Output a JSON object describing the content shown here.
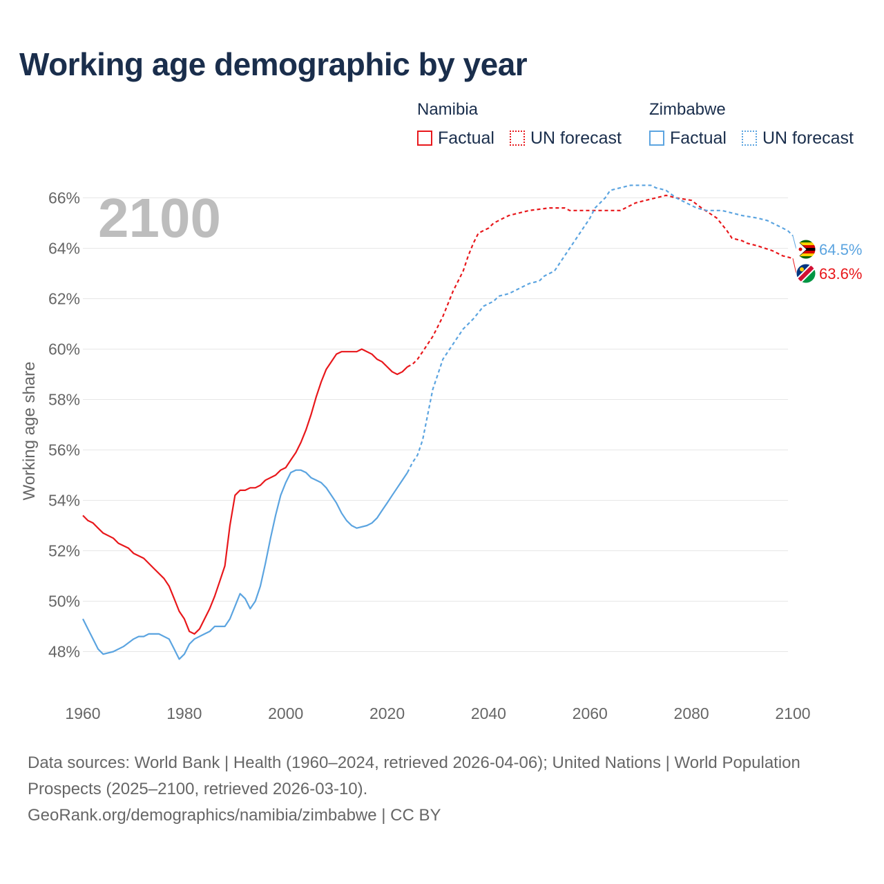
{
  "header": {
    "title": "Working age demographic by year"
  },
  "legend": {
    "groups": [
      {
        "name": "Namibia",
        "factual_label": "Factual",
        "forecast_label": "UN forecast",
        "color": "#e8171b"
      },
      {
        "name": "Zimbabwe",
        "factual_label": "Factual",
        "forecast_label": "UN forecast",
        "color": "#5ba4e0"
      }
    ]
  },
  "footer": {
    "source_line1": "Data sources: World Bank | Health (1960–2024, retrieved 2026-04-06); United Nations | World Population Prospects (2025–2100, retrieved 2026-03-10).",
    "source_line2": "GeoRank.org/demographics/namibia/zimbabwe | CC BY"
  },
  "chart_data": {
    "type": "line",
    "title": "Working age demographic by year",
    "xlabel": "",
    "ylabel": "Working age share",
    "year_label": "2100",
    "xlim": [
      1960,
      2103
    ],
    "ylim": [
      47,
      67
    ],
    "x_ticks": [
      1960,
      1980,
      2000,
      2020,
      2040,
      2060,
      2080,
      2100
    ],
    "y_ticks": [
      48,
      50,
      52,
      54,
      56,
      58,
      60,
      62,
      64,
      66
    ],
    "y_tick_labels": [
      "48%",
      "50%",
      "52%",
      "54%",
      "56%",
      "58%",
      "60%",
      "62%",
      "64%",
      "66%"
    ],
    "grid": true,
    "forecast_start": 2024,
    "series": [
      {
        "name": "Namibia",
        "color": "#e8171b",
        "end_label": "63.6%",
        "flag_icon": "namibia-flag-icon",
        "points": [
          [
            1960,
            53.4
          ],
          [
            1961,
            53.2
          ],
          [
            1962,
            53.1
          ],
          [
            1963,
            52.9
          ],
          [
            1964,
            52.7
          ],
          [
            1966,
            52.5
          ],
          [
            1967,
            52.3
          ],
          [
            1969,
            52.1
          ],
          [
            1970,
            51.9
          ],
          [
            1972,
            51.7
          ],
          [
            1974,
            51.3
          ],
          [
            1976,
            50.9
          ],
          [
            1977,
            50.6
          ],
          [
            1978,
            50.1
          ],
          [
            1979,
            49.6
          ],
          [
            1980,
            49.3
          ],
          [
            1981,
            48.8
          ],
          [
            1982,
            48.7
          ],
          [
            1983,
            48.9
          ],
          [
            1984,
            49.3
          ],
          [
            1985,
            49.7
          ],
          [
            1986,
            50.2
          ],
          [
            1987,
            50.8
          ],
          [
            1988,
            51.4
          ],
          [
            1989,
            53.0
          ],
          [
            1990,
            54.2
          ],
          [
            1991,
            54.4
          ],
          [
            1992,
            54.4
          ],
          [
            1993,
            54.5
          ],
          [
            1994,
            54.5
          ],
          [
            1995,
            54.6
          ],
          [
            1996,
            54.8
          ],
          [
            1998,
            55.0
          ],
          [
            1999,
            55.2
          ],
          [
            2000,
            55.3
          ],
          [
            2001,
            55.6
          ],
          [
            2002,
            55.9
          ],
          [
            2003,
            56.3
          ],
          [
            2004,
            56.8
          ],
          [
            2005,
            57.4
          ],
          [
            2006,
            58.1
          ],
          [
            2007,
            58.7
          ],
          [
            2008,
            59.2
          ],
          [
            2009,
            59.5
          ],
          [
            2010,
            59.8
          ],
          [
            2011,
            59.9
          ],
          [
            2014,
            59.9
          ],
          [
            2015,
            60.0
          ],
          [
            2017,
            59.8
          ],
          [
            2018,
            59.6
          ],
          [
            2019,
            59.5
          ],
          [
            2020,
            59.3
          ],
          [
            2021,
            59.1
          ],
          [
            2022,
            59.0
          ],
          [
            2023,
            59.1
          ],
          [
            2024,
            59.3
          ],
          [
            2025,
            59.4
          ],
          [
            2026,
            59.6
          ],
          [
            2027,
            59.9
          ],
          [
            2028,
            60.2
          ],
          [
            2029,
            60.5
          ],
          [
            2030,
            60.9
          ],
          [
            2031,
            61.3
          ],
          [
            2032,
            61.8
          ],
          [
            2033,
            62.3
          ],
          [
            2034,
            62.7
          ],
          [
            2035,
            63.1
          ],
          [
            2036,
            63.7
          ],
          [
            2037,
            64.2
          ],
          [
            2038,
            64.6
          ],
          [
            2040,
            64.8
          ],
          [
            2041,
            65.0
          ],
          [
            2043,
            65.2
          ],
          [
            2044,
            65.3
          ],
          [
            2046,
            65.4
          ],
          [
            2048,
            65.5
          ],
          [
            2052,
            65.6
          ],
          [
            2055,
            65.6
          ],
          [
            2056,
            65.5
          ],
          [
            2058,
            65.5
          ],
          [
            2060,
            65.5
          ],
          [
            2065,
            65.5
          ],
          [
            2066,
            65.5
          ],
          [
            2067,
            65.6
          ],
          [
            2069,
            65.8
          ],
          [
            2071,
            65.9
          ],
          [
            2073,
            66.0
          ],
          [
            2075,
            66.1
          ],
          [
            2077,
            66.0
          ],
          [
            2080,
            65.9
          ],
          [
            2082,
            65.6
          ],
          [
            2085,
            65.2
          ],
          [
            2087,
            64.7
          ],
          [
            2088,
            64.4
          ],
          [
            2090,
            64.3
          ],
          [
            2091,
            64.2
          ],
          [
            2093,
            64.1
          ],
          [
            2096,
            63.9
          ],
          [
            2098,
            63.7
          ],
          [
            2100,
            63.6
          ]
        ]
      },
      {
        "name": "Zimbabwe",
        "color": "#5ba4e0",
        "end_label": "64.5%",
        "flag_icon": "zimbabwe-flag-icon",
        "points": [
          [
            1960,
            49.3
          ],
          [
            1961,
            48.9
          ],
          [
            1962,
            48.5
          ],
          [
            1963,
            48.1
          ],
          [
            1964,
            47.9
          ],
          [
            1966,
            48.0
          ],
          [
            1968,
            48.2
          ],
          [
            1970,
            48.5
          ],
          [
            1971,
            48.6
          ],
          [
            1972,
            48.6
          ],
          [
            1973,
            48.7
          ],
          [
            1975,
            48.7
          ],
          [
            1977,
            48.5
          ],
          [
            1978,
            48.1
          ],
          [
            1979,
            47.7
          ],
          [
            1980,
            47.9
          ],
          [
            1981,
            48.3
          ],
          [
            1982,
            48.5
          ],
          [
            1984,
            48.7
          ],
          [
            1985,
            48.8
          ],
          [
            1986,
            49.0
          ],
          [
            1988,
            49.0
          ],
          [
            1989,
            49.3
          ],
          [
            1990,
            49.8
          ],
          [
            1991,
            50.3
          ],
          [
            1992,
            50.1
          ],
          [
            1993,
            49.7
          ],
          [
            1994,
            50.0
          ],
          [
            1995,
            50.6
          ],
          [
            1996,
            51.5
          ],
          [
            1997,
            52.5
          ],
          [
            1998,
            53.4
          ],
          [
            1999,
            54.2
          ],
          [
            2000,
            54.7
          ],
          [
            2001,
            55.1
          ],
          [
            2002,
            55.2
          ],
          [
            2003,
            55.2
          ],
          [
            2004,
            55.1
          ],
          [
            2005,
            54.9
          ],
          [
            2006,
            54.8
          ],
          [
            2007,
            54.7
          ],
          [
            2008,
            54.5
          ],
          [
            2009,
            54.2
          ],
          [
            2010,
            53.9
          ],
          [
            2011,
            53.5
          ],
          [
            2012,
            53.2
          ],
          [
            2013,
            53.0
          ],
          [
            2014,
            52.9
          ],
          [
            2016,
            53.0
          ],
          [
            2017,
            53.1
          ],
          [
            2018,
            53.3
          ],
          [
            2019,
            53.6
          ],
          [
            2020,
            53.9
          ],
          [
            2021,
            54.2
          ],
          [
            2022,
            54.5
          ],
          [
            2023,
            54.8
          ],
          [
            2024,
            55.1
          ],
          [
            2025,
            55.5
          ],
          [
            2026,
            55.8
          ],
          [
            2027,
            56.4
          ],
          [
            2028,
            57.4
          ],
          [
            2029,
            58.4
          ],
          [
            2030,
            59.0
          ],
          [
            2031,
            59.6
          ],
          [
            2033,
            60.2
          ],
          [
            2035,
            60.8
          ],
          [
            2037,
            61.2
          ],
          [
            2039,
            61.7
          ],
          [
            2041,
            61.9
          ],
          [
            2042,
            62.1
          ],
          [
            2044,
            62.2
          ],
          [
            2046,
            62.4
          ],
          [
            2048,
            62.6
          ],
          [
            2050,
            62.7
          ],
          [
            2051,
            62.9
          ],
          [
            2053,
            63.1
          ],
          [
            2054,
            63.4
          ],
          [
            2056,
            64.0
          ],
          [
            2058,
            64.6
          ],
          [
            2060,
            65.2
          ],
          [
            2061,
            65.6
          ],
          [
            2063,
            66.0
          ],
          [
            2064,
            66.3
          ],
          [
            2066,
            66.4
          ],
          [
            2068,
            66.5
          ],
          [
            2072,
            66.5
          ],
          [
            2073,
            66.4
          ],
          [
            2075,
            66.3
          ],
          [
            2077,
            66.0
          ],
          [
            2079,
            65.8
          ],
          [
            2081,
            65.6
          ],
          [
            2083,
            65.5
          ],
          [
            2086,
            65.5
          ],
          [
            2088,
            65.4
          ],
          [
            2090,
            65.3
          ],
          [
            2093,
            65.2
          ],
          [
            2095,
            65.1
          ],
          [
            2097,
            64.9
          ],
          [
            2099,
            64.7
          ],
          [
            2100,
            64.5
          ]
        ]
      }
    ]
  }
}
